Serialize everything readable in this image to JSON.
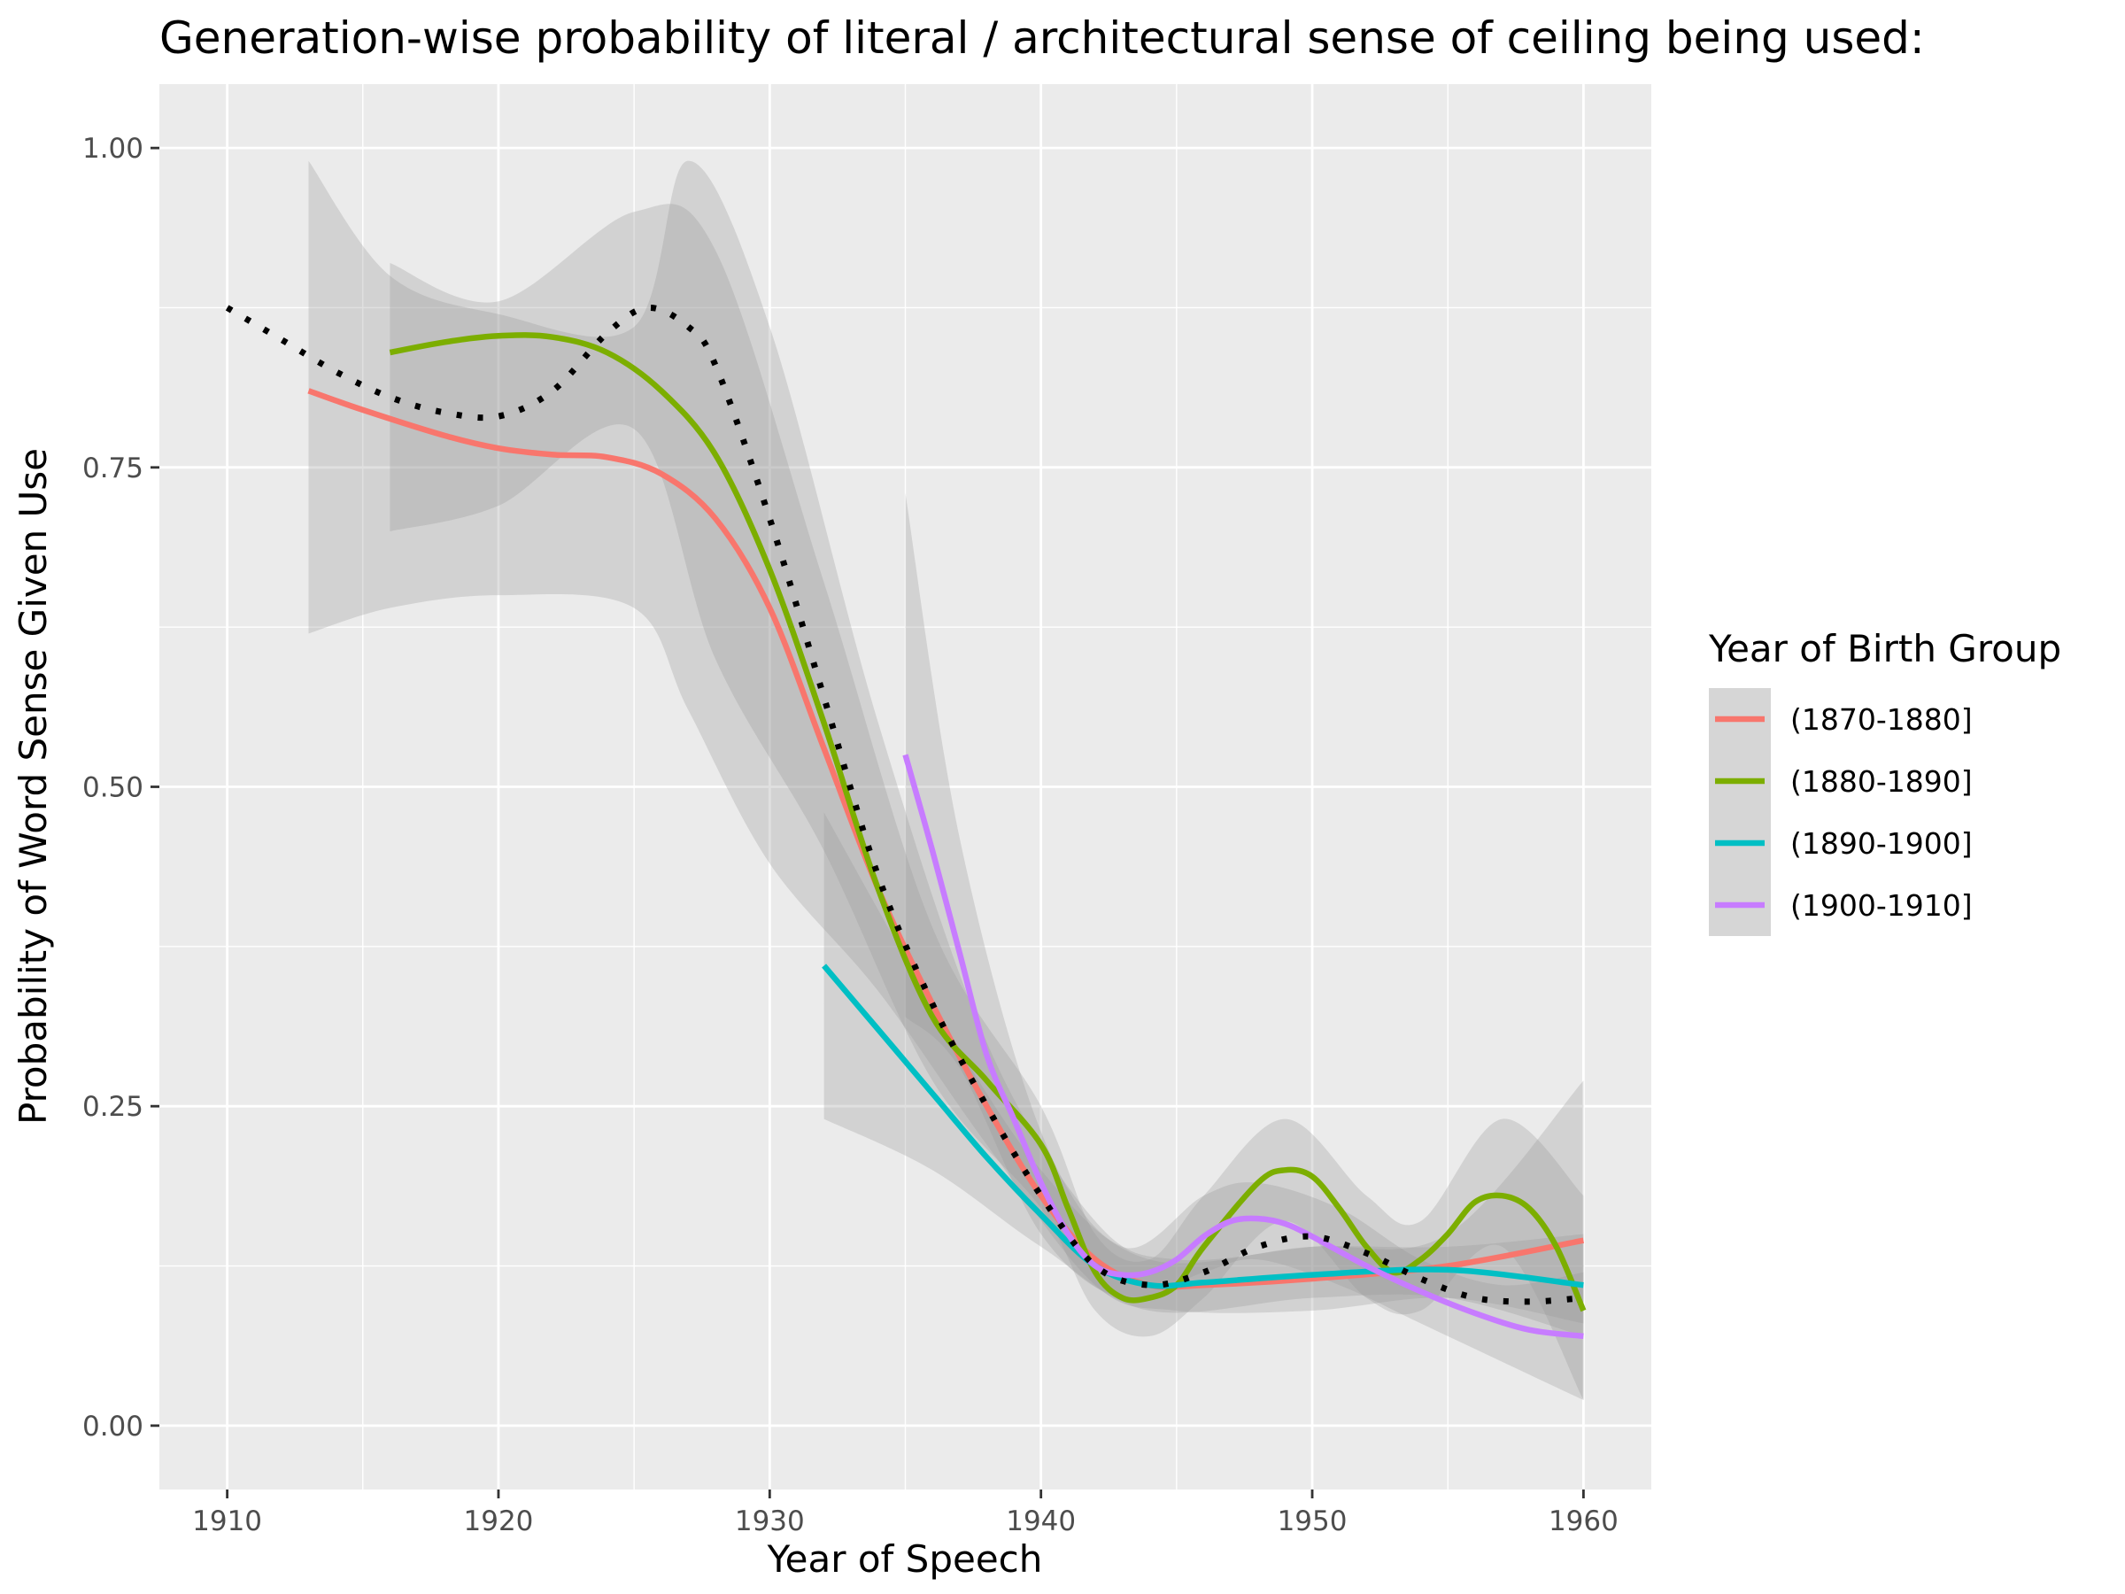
{
  "chart_data": {
    "type": "line",
    "title": "Generation-wise probability of literal / architectural sense of ceiling being used:",
    "xlabel": "Year of Speech",
    "ylabel": "Probability of Word Sense Given Use",
    "xlim": [
      1907.5,
      1962.5
    ],
    "ylim": [
      -0.05,
      1.05
    ],
    "x_ticks": [
      1910,
      1920,
      1930,
      1940,
      1950,
      1960
    ],
    "x_tick_labels": [
      "1910",
      "1920",
      "1930",
      "1940",
      "1950",
      "1960"
    ],
    "y_ticks": [
      0,
      0.25,
      0.5,
      0.75,
      1.0
    ],
    "y_tick_labels": [
      "0.00",
      "0.25",
      "0.50",
      "0.75",
      "1.00"
    ],
    "grid": true,
    "panel_background": "#ebebeb",
    "legend": {
      "title": "Year of Birth Group",
      "position": "right"
    },
    "series": [
      {
        "name": "(1870-1880]",
        "color": "#F8766D",
        "points": [
          [
            1913,
            0.81
          ],
          [
            1915,
            0.795
          ],
          [
            1918,
            0.775
          ],
          [
            1920,
            0.765
          ],
          [
            1922,
            0.76
          ],
          [
            1924,
            0.758
          ],
          [
            1926,
            0.745
          ],
          [
            1928,
            0.71
          ],
          [
            1930,
            0.64
          ],
          [
            1932,
            0.53
          ],
          [
            1934,
            0.42
          ],
          [
            1936,
            0.33
          ],
          [
            1938,
            0.25
          ],
          [
            1940,
            0.18
          ],
          [
            1942,
            0.13
          ],
          [
            1944,
            0.11
          ],
          [
            1946,
            0.11
          ],
          [
            1950,
            0.115
          ],
          [
            1955,
            0.125
          ],
          [
            1960,
            0.145
          ]
        ],
        "ribbon": [
          [
            1913,
            0.62,
            0.99
          ],
          [
            1916,
            0.64,
            0.9
          ],
          [
            1920,
            0.65,
            0.87
          ],
          [
            1925,
            0.64,
            0.86
          ],
          [
            1927,
            0.56,
            0.99
          ],
          [
            1930,
            0.44,
            0.86
          ],
          [
            1934,
            0.34,
            0.55
          ],
          [
            1938,
            0.22,
            0.3
          ],
          [
            1942,
            0.11,
            0.16
          ],
          [
            1945,
            0.09,
            0.13
          ],
          [
            1950,
            0.09,
            0.14
          ],
          [
            1955,
            0.1,
            0.15
          ],
          [
            1960,
            0.08,
            0.27
          ]
        ]
      },
      {
        "name": "(1880-1890]",
        "color": "#7CAE00",
        "points": [
          [
            1916,
            0.84
          ],
          [
            1918,
            0.848
          ],
          [
            1920,
            0.853
          ],
          [
            1922,
            0.852
          ],
          [
            1924,
            0.84
          ],
          [
            1926,
            0.81
          ],
          [
            1928,
            0.76
          ],
          [
            1930,
            0.67
          ],
          [
            1932,
            0.55
          ],
          [
            1934,
            0.42
          ],
          [
            1936,
            0.32
          ],
          [
            1938,
            0.27
          ],
          [
            1940,
            0.22
          ],
          [
            1941,
            0.17
          ],
          [
            1942,
            0.12
          ],
          [
            1943,
            0.1
          ],
          [
            1944,
            0.1
          ],
          [
            1945,
            0.11
          ],
          [
            1946,
            0.14
          ],
          [
            1948,
            0.19
          ],
          [
            1949,
            0.2
          ],
          [
            1950,
            0.195
          ],
          [
            1951,
            0.17
          ],
          [
            1952,
            0.14
          ],
          [
            1953,
            0.12
          ],
          [
            1954,
            0.13
          ],
          [
            1955,
            0.15
          ],
          [
            1956,
            0.175
          ],
          [
            1957,
            0.18
          ],
          [
            1958,
            0.17
          ],
          [
            1959,
            0.14
          ],
          [
            1960,
            0.09
          ]
        ],
        "ribbon": [
          [
            1916,
            0.7,
            0.91
          ],
          [
            1920,
            0.72,
            0.88
          ],
          [
            1925,
            0.78,
            0.95
          ],
          [
            1928,
            0.6,
            0.92
          ],
          [
            1932,
            0.45,
            0.66
          ],
          [
            1936,
            0.27,
            0.39
          ],
          [
            1940,
            0.17,
            0.25
          ],
          [
            1942,
            0.09,
            0.15
          ],
          [
            1944,
            0.07,
            0.13
          ],
          [
            1946,
            0.1,
            0.18
          ],
          [
            1949,
            0.16,
            0.24
          ],
          [
            1952,
            0.1,
            0.18
          ],
          [
            1954,
            0.09,
            0.16
          ],
          [
            1957,
            0.14,
            0.24
          ],
          [
            1960,
            0.02,
            0.18
          ]
        ]
      },
      {
        "name": "(1890-1900]",
        "color": "#00BFC4",
        "points": [
          [
            1932,
            0.36
          ],
          [
            1934,
            0.31
          ],
          [
            1936,
            0.26
          ],
          [
            1938,
            0.21
          ],
          [
            1940,
            0.165
          ],
          [
            1942,
            0.125
          ],
          [
            1944,
            0.11
          ],
          [
            1946,
            0.112
          ],
          [
            1950,
            0.118
          ],
          [
            1955,
            0.122
          ],
          [
            1960,
            0.11
          ]
        ],
        "ribbon": [
          [
            1932,
            0.24,
            0.48
          ],
          [
            1936,
            0.2,
            0.33
          ],
          [
            1940,
            0.14,
            0.2
          ],
          [
            1944,
            0.09,
            0.13
          ],
          [
            1950,
            0.1,
            0.14
          ],
          [
            1955,
            0.1,
            0.14
          ],
          [
            1960,
            0.07,
            0.15
          ]
        ]
      },
      {
        "name": "(1900-1910]",
        "color": "#C77CFF",
        "points": [
          [
            1935,
            0.525
          ],
          [
            1936,
            0.45
          ],
          [
            1937,
            0.37
          ],
          [
            1938,
            0.29
          ],
          [
            1939,
            0.24
          ],
          [
            1940,
            0.19
          ],
          [
            1941,
            0.15
          ],
          [
            1942,
            0.125
          ],
          [
            1943,
            0.118
          ],
          [
            1944,
            0.12
          ],
          [
            1945,
            0.13
          ],
          [
            1946,
            0.148
          ],
          [
            1947,
            0.16
          ],
          [
            1948,
            0.162
          ],
          [
            1949,
            0.158
          ],
          [
            1950,
            0.148
          ],
          [
            1952,
            0.125
          ],
          [
            1954,
            0.105
          ],
          [
            1956,
            0.088
          ],
          [
            1958,
            0.075
          ],
          [
            1960,
            0.07
          ]
        ],
        "ribbon": [
          [
            1935,
            0.32,
            0.73
          ],
          [
            1937,
            0.28,
            0.46
          ],
          [
            1940,
            0.15,
            0.23
          ],
          [
            1943,
            0.1,
            0.14
          ],
          [
            1946,
            0.12,
            0.18
          ],
          [
            1948,
            0.13,
            0.19
          ],
          [
            1951,
            0.11,
            0.17
          ],
          [
            1954,
            0.08,
            0.13
          ],
          [
            1957,
            0.05,
            0.11
          ],
          [
            1960,
            0.02,
            0.12
          ]
        ]
      },
      {
        "name": "",
        "color": "#000000",
        "dotted": true,
        "points": [
          [
            1910,
            0.875
          ],
          [
            1912,
            0.85
          ],
          [
            1914,
            0.825
          ],
          [
            1916,
            0.805
          ],
          [
            1918,
            0.793
          ],
          [
            1920,
            0.79
          ],
          [
            1922,
            0.81
          ],
          [
            1924,
            0.855
          ],
          [
            1925.5,
            0.875
          ],
          [
            1927,
            0.86
          ],
          [
            1928,
            0.83
          ],
          [
            1930,
            0.71
          ],
          [
            1932,
            0.57
          ],
          [
            1934,
            0.43
          ],
          [
            1936,
            0.33
          ],
          [
            1938,
            0.25
          ],
          [
            1940,
            0.18
          ],
          [
            1942,
            0.125
          ],
          [
            1944,
            0.11
          ],
          [
            1946,
            0.12
          ],
          [
            1948,
            0.14
          ],
          [
            1950,
            0.148
          ],
          [
            1952,
            0.135
          ],
          [
            1954,
            0.115
          ],
          [
            1956,
            0.1
          ],
          [
            1958,
            0.097
          ],
          [
            1960,
            0.1
          ]
        ]
      }
    ]
  }
}
